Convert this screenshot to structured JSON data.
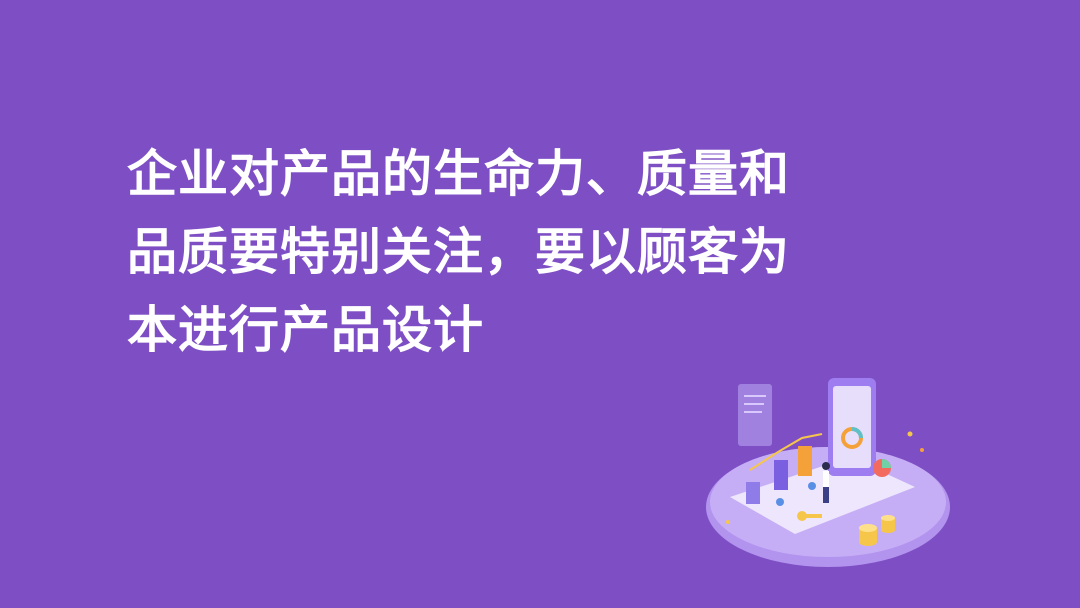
{
  "headline": {
    "lines": [
      "企业对产品的生命力、质量和",
      "品质要特别关注，要以顾客为",
      "本进行产品设计"
    ]
  },
  "colors": {
    "background": "#7e4fc4",
    "text": "#ffffff",
    "platform": "#b597f0",
    "phone": "#9d7df0",
    "accent_orange": "#f5a13a",
    "accent_gold": "#f6c64a"
  },
  "illustration": {
    "icon": "data-analytics-phone-illustration"
  }
}
